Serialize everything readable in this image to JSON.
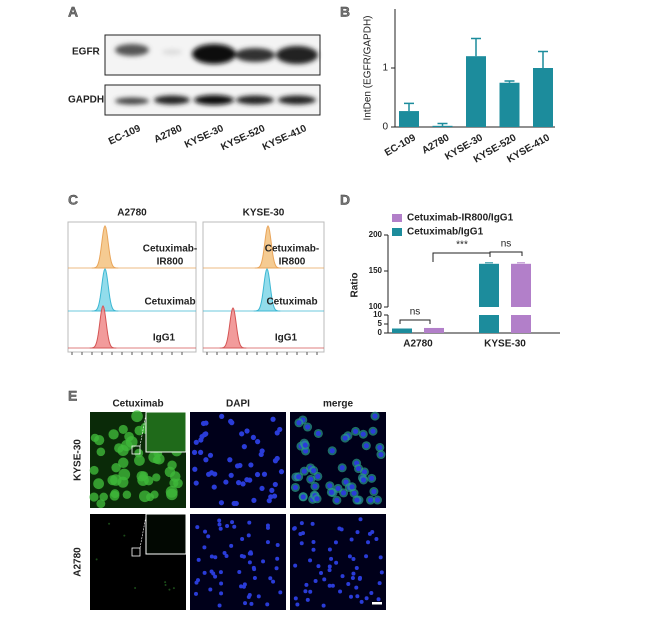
{
  "panels": {
    "A": {
      "label": "A",
      "rows": [
        "EGFR",
        "GAPDH"
      ],
      "lanes": [
        "EC-109",
        "A2780",
        "KYSE-30",
        "KYSE-520",
        "KYSE-410"
      ]
    },
    "C": {
      "label": "C",
      "columns": [
        "A2780",
        "KYSE-30"
      ],
      "rows": [
        [
          "Cetuximab-",
          "IR800"
        ],
        [
          "Cetuximab"
        ],
        [
          "IgG1"
        ]
      ]
    },
    "E": {
      "label": "E",
      "columns": [
        "Cetuximab",
        "DAPI",
        "merge"
      ],
      "rows": [
        "KYSE-30",
        "A2780"
      ]
    }
  },
  "chart_data": [
    {
      "type": "bar",
      "panel_label": "B",
      "y_label": "IntDen (EGFR/GAPDH)",
      "categories": [
        "EC-109",
        "A2780",
        "KYSE-30",
        "KYSE-520",
        "KYSE-410"
      ],
      "values": [
        0.27,
        0.02,
        1.2,
        0.75,
        1.0
      ],
      "errors": [
        0.13,
        0.04,
        0.3,
        0.03,
        0.28
      ],
      "color": "#1c8c9c",
      "ylim": [
        0,
        2
      ],
      "yticks": [
        0,
        1
      ]
    },
    {
      "type": "grouped_bar",
      "panel_label": "D",
      "y_label": "Ratio",
      "categories": [
        "A2780",
        "KYSE-30"
      ],
      "series": [
        {
          "name": "Cetuximab/IgG1",
          "color": "#1c8c9c",
          "values": [
            2.5,
            160
          ]
        },
        {
          "name": "Cetuximab-IR800/IgG1",
          "color": "#b27fc9",
          "values": [
            2.8,
            160
          ]
        }
      ],
      "ylim": [
        0,
        200
      ],
      "y_break": [
        10,
        100
      ],
      "yticks": [
        0,
        5,
        10,
        100,
        150,
        200
      ],
      "annotations": [
        "ns",
        "***",
        "ns"
      ]
    }
  ]
}
